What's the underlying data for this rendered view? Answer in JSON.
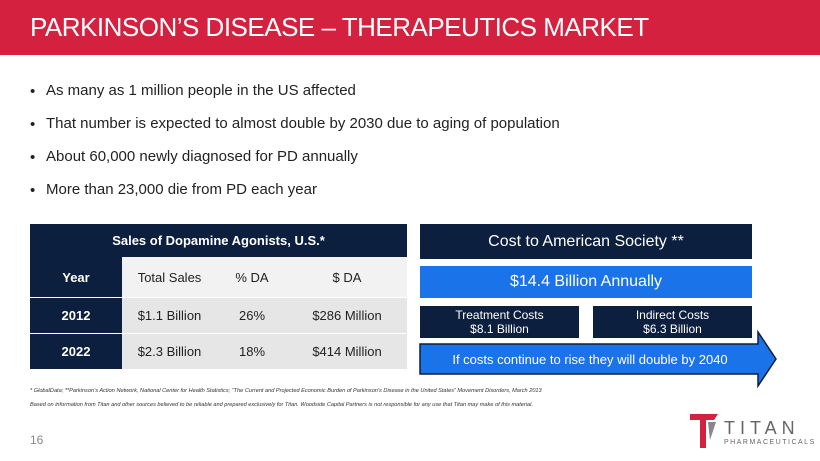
{
  "header": {
    "title": "PARKINSON’S DISEASE – THERAPEUTICS MARKET"
  },
  "bullets": [
    "As many as 1 million people in the US affected",
    "That number is expected to almost double by 2030 due to aging of population",
    "About 60,000 newly diagnosed for PD annually",
    "More than 23,000 die from PD each year"
  ],
  "table": {
    "title": "Sales of Dopamine Agonists, U.S.*",
    "columns": [
      "Year",
      "Total Sales",
      "% DA",
      "$ DA"
    ],
    "rows": [
      [
        "2012",
        "$1.1 Billion",
        "26%",
        "$286 Million"
      ],
      [
        "2022",
        "$2.3 Billion",
        "18%",
        "$414 Million"
      ]
    ]
  },
  "cost": {
    "title": "Cost to American Society **",
    "total": "$14.4 Billion Annually",
    "breakdown": [
      {
        "label": "Treatment Costs",
        "value": "$8.1 Billion"
      },
      {
        "label": "Indirect Costs",
        "value": "$6.3 Billion"
      }
    ],
    "projection": "If costs continue to rise they will double by 2040"
  },
  "footnotes": [
    "* GlobalData; **Parkinson’s Action Network, National Center for Health Statistics; “The Current and Projected Economic Burden of Parkinson’s Disease in the United States” Movement Disorders, March 2013",
    "Based on information from Titan and other sources believed to be reliable and prepared exclusively for Titan. Woodside Capital Partners is not responsible for any use that Titan may make of this material."
  ],
  "page_number": "16",
  "logo": {
    "name": "TITAN",
    "tagline": "PHARMACEUTICALS"
  }
}
